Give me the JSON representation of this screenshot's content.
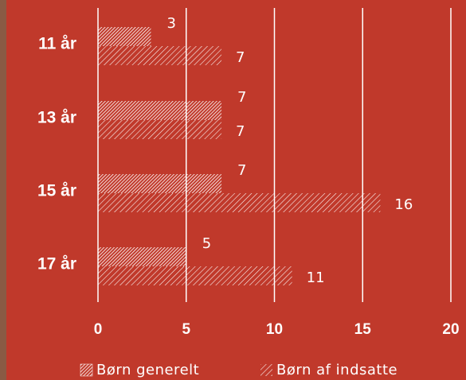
{
  "chart_data": {
    "type": "bar",
    "orientation": "horizontal",
    "categories": [
      "11 år",
      "13 år",
      "15 år",
      "17 år"
    ],
    "series": [
      {
        "name": "Børn generelt",
        "color": "#ffffff",
        "values": [
          3,
          7,
          7,
          5
        ]
      },
      {
        "name": "Børn af indsatte",
        "color": "#ffffff",
        "values": [
          7,
          7,
          16,
          11
        ]
      }
    ],
    "xlim": [
      0,
      20
    ],
    "xticks": [
      0,
      5,
      10,
      15,
      20
    ],
    "grid": true
  }
}
